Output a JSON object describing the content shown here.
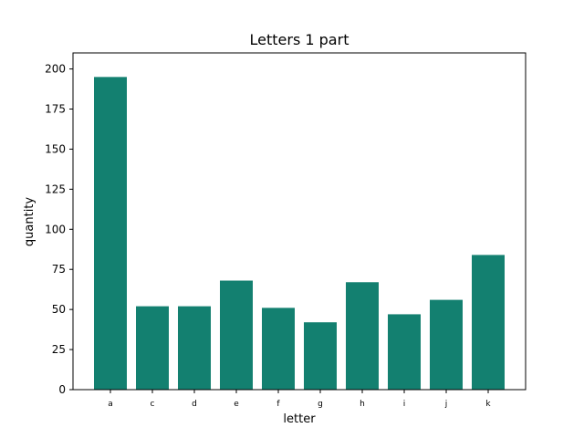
{
  "chart_data": {
    "type": "bar",
    "title": "Letters 1 part",
    "xlabel": "letter",
    "ylabel": "quantity",
    "categories": [
      "a",
      "c",
      "d",
      "e",
      "f",
      "g",
      "h",
      "i",
      "j",
      "k"
    ],
    "values": [
      195,
      52,
      52,
      68,
      51,
      42,
      67,
      47,
      56,
      84
    ],
    "ylim": [
      0,
      210
    ],
    "yticks": [
      0,
      25,
      50,
      75,
      100,
      125,
      150,
      175,
      200
    ],
    "grid": false,
    "legend": "none",
    "colors": {
      "bar": "#138070"
    }
  }
}
